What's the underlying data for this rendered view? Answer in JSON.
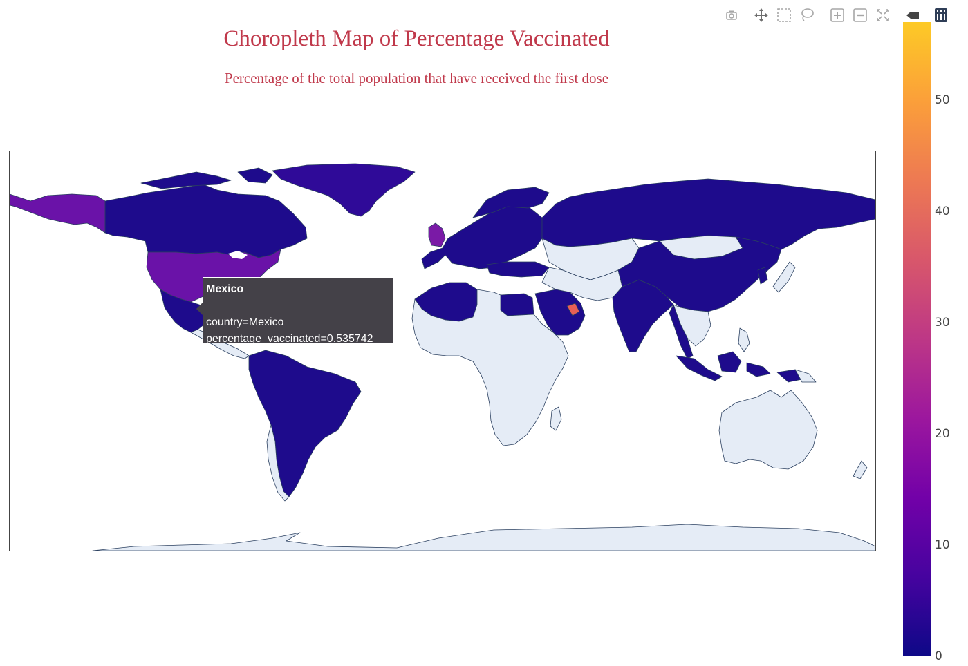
{
  "title": "Choropleth Map of Percentage Vaccinated",
  "subtitle": "Percentage of the total population that have received the first dose",
  "modebar": [
    {
      "name": "camera-icon",
      "label": "Download plot as a png"
    },
    {
      "name": "pan-icon",
      "label": "Pan"
    },
    {
      "name": "box-select-icon",
      "label": "Box Select"
    },
    {
      "name": "lasso-select-icon",
      "label": "Lasso Select"
    },
    {
      "name": "zoom-in-icon",
      "label": "Zoom in"
    },
    {
      "name": "zoom-out-icon",
      "label": "Zoom out"
    },
    {
      "name": "reset-view-icon",
      "label": "Reset"
    },
    {
      "name": "compare-data-icon",
      "label": "Compare data on hover"
    },
    {
      "name": "plotly-logo-icon",
      "label": "Produced with Plotly"
    }
  ],
  "colorbar": {
    "min": 0,
    "max": 57,
    "ticks": [
      "0",
      "10",
      "20",
      "30",
      "40",
      "50"
    ],
    "colors": [
      "#0d0887",
      "#46039f",
      "#7201a8",
      "#9c179e",
      "#bd3786",
      "#d8576b",
      "#ed7953",
      "#fb9f3a",
      "#fdca26"
    ],
    "missing_color": "#e5ecf6"
  },
  "tooltip": {
    "title": "Mexico",
    "line1": "country=Mexico",
    "line2": "percentage_vaccinated=0.535742"
  },
  "chart_data": {
    "type": "choropleth",
    "title": "Choropleth Map of Percentage Vaccinated",
    "subtitle": "Percentage of the total population that have received the first dose",
    "colorbar_range": [
      0,
      57
    ],
    "highlighted": {
      "country": "Mexico",
      "percentage_vaccinated": 0.535742
    }
  }
}
